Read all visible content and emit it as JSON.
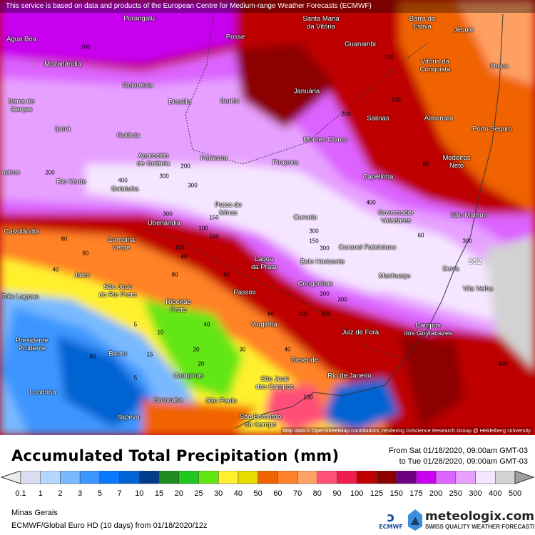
{
  "banner": "This service is based on data and products of the European Centre for Medium-range Weather Forecasts (ECMWF)",
  "attribution": "Map data © OpenStreetMap contributors, rendering GIScience Research Group @ Heidelberg University",
  "max_value_label": "552",
  "cities": [
    "Porangatu",
    "Santa Maria\nda Vitória",
    "Barra da\nEstiva",
    "Jequié",
    "Água Boa",
    "Posse",
    "Guanambi",
    "Mozarlândia",
    "Vitória da\nConquista",
    "Ilhéus",
    "Goianésia",
    "Januária",
    "Brasília",
    "Buritis",
    "Barra do\nGarças",
    "Almenara",
    "Salinas",
    "Porto Seguro",
    "Iporá",
    "Goiânia",
    "Montes Claros",
    "Aparecida\nde Goiânia",
    "Paracatu",
    "Medeiros\nNeto",
    "Pirapora",
    "Capelinha",
    "Rio Verde",
    "Goiatuba",
    "Patos de\nMinas",
    "Curvelo",
    "Governador\nValadares",
    "São Mateus",
    "Cassilândia",
    "Uberlândia",
    "Campina\nVerde",
    "Coronel Fabriciano",
    "Lagoa\nda Prata",
    "Belo Horizonte",
    "Serra",
    "Jales",
    "Manhuaçu",
    "São José\ndo Rio Preto",
    "Vila Velha",
    "Congonhas",
    "Três Lagoas",
    "Passos",
    "Ribeirão\nPreto",
    "Varginha",
    "Campos\ndos Goytacazes",
    "Juiz de Fora",
    "Presidente\nPrudente",
    "Bauru",
    "Resende",
    "Campinas",
    "São José\ndos Campos",
    "Rio de Janeiro",
    "Londrina",
    "Sorocaba",
    "São Paulo",
    "Itapeva",
    "São Bernardo\ndo Campo",
    "neiros"
  ],
  "contour_labels": [
    "200",
    "400",
    "300",
    "200",
    "300",
    "200",
    "150",
    "100",
    "80",
    "60",
    "40",
    "100",
    "300",
    "300",
    "300",
    "300",
    "200",
    "80",
    "60",
    "400",
    "300",
    "100",
    "20",
    "40",
    "60",
    "100",
    "5",
    "5",
    "40",
    "10",
    "15",
    "20",
    "30",
    "100",
    "150",
    "200",
    "150",
    "60",
    "80",
    "60",
    "80",
    "100",
    "400",
    "300"
  ],
  "legend": {
    "title": "Accumulated Total Precipitation (mm)",
    "from": "From Sat 01/18/2020, 09:00am GMT-03",
    "to": "to Tue 01/28/2020, 09:00am GMT-03",
    "ticks": [
      "0.1",
      "1",
      "2",
      "3",
      "5",
      "7",
      "10",
      "15",
      "20",
      "25",
      "30",
      "40",
      "50",
      "60",
      "70",
      "80",
      "90",
      "100",
      "125",
      "150",
      "175",
      "200",
      "250",
      "300",
      "400",
      "500"
    ],
    "colors": [
      "#dcdcf0",
      "#b4d7ff",
      "#78b9ff",
      "#3c96ff",
      "#0a78ff",
      "#0064d2",
      "#003c8c",
      "#1e8c1e",
      "#1ec81e",
      "#64e614",
      "#fff02d",
      "#e6dc00",
      "#f06400",
      "#ff8228",
      "#ffa064",
      "#ff5078",
      "#f01e50",
      "#be0000",
      "#8c0000",
      "#6e0082",
      "#c800f0",
      "#dc64ff",
      "#e6a0ff",
      "#f5e6ff",
      "#d2d2d2"
    ],
    "under_color": "#ececec",
    "over_color": "#a0a0a0"
  },
  "footer": {
    "region": "Minas Gerais",
    "model": "ECMWF/Global Euro HD (10 days)  from  01/18/2020/12z",
    "ecmwf_logo": "ECMWF",
    "brand": "meteologix.com",
    "tagline": "SWISS QUALITY WEATHER FORECASTING"
  }
}
